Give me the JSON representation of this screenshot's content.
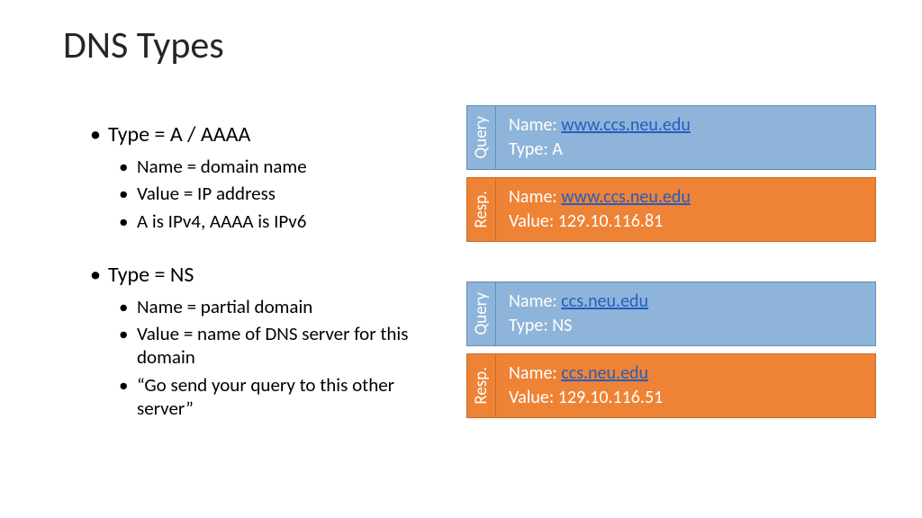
{
  "title": "DNS Types",
  "left": {
    "sections": [
      {
        "heading": "Type = A / AAAA",
        "subs": [
          "Name = domain name",
          "Value = IP address",
          "A is IPv4, AAAA is IPv6"
        ]
      },
      {
        "heading": "Type = NS",
        "subs": [
          "Name = partial domain",
          "Value = name of DNS server for this domain",
          "“Go send your query to this other server”"
        ]
      }
    ]
  },
  "right": {
    "pairs": [
      {
        "query": {
          "label": "Query",
          "name_prefix": "Name: ",
          "link": "www.ccs.neu.edu",
          "line2": "Type: A"
        },
        "resp": {
          "label": "Resp.",
          "name_prefix": "Name: ",
          "link": "www.ccs.neu.edu",
          "line2": "Value: 129.10.116.81"
        }
      },
      {
        "query": {
          "label": "Query",
          "name_prefix": "Name: ",
          "link": "ccs.neu.edu",
          "line2": "Type: NS"
        },
        "resp": {
          "label": "Resp.",
          "name_prefix": "Name: ",
          "link": "ccs.neu.edu",
          "line2": "Value: 129.10.116.51"
        }
      }
    ]
  },
  "colors": {
    "query_bg": "#8fb4d9",
    "query_border": "#5a8fbf",
    "resp_bg": "#ee8336",
    "resp_border": "#c96a28",
    "link": "#245ec0",
    "text_white": "#ffffff",
    "text_black": "#262626"
  },
  "fonts": {
    "title_size": 42,
    "l1_size": 24,
    "l2_size": 21,
    "block_size": 20,
    "side_size": 19
  }
}
